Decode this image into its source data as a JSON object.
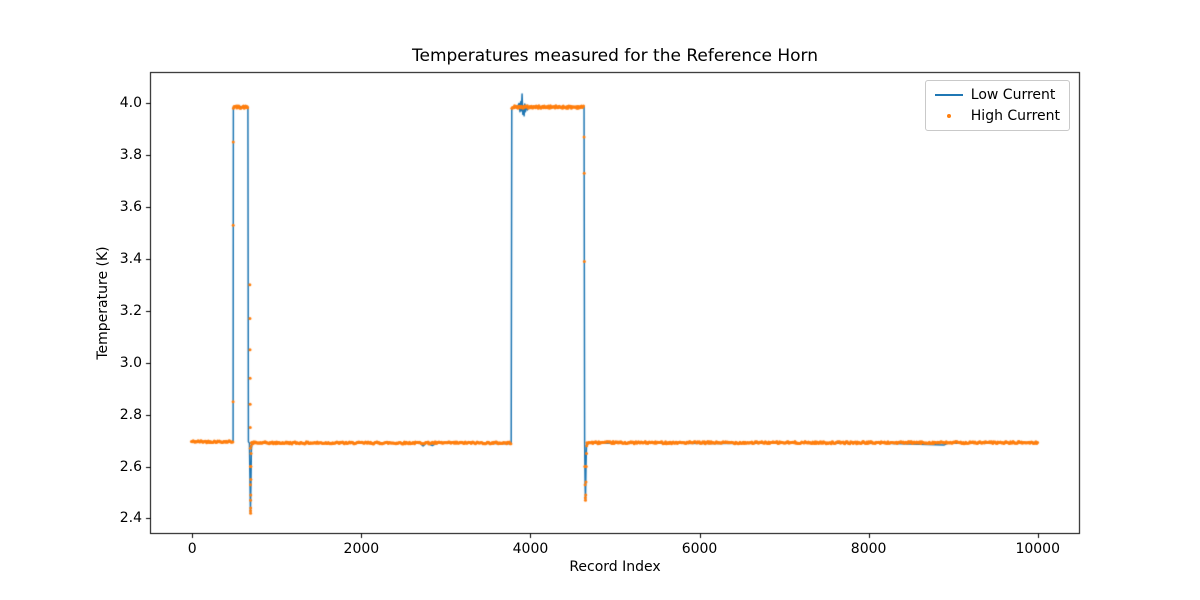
{
  "figure": {
    "background": "#ffffff",
    "axis_color": "#000000"
  },
  "chart_data": {
    "type": "line",
    "title": "Temperatures measured for the Reference Horn",
    "xlabel": "Record Index",
    "ylabel": "Temperature (K)",
    "xlim": [
      -500,
      10500
    ],
    "ylim": [
      2.34,
      4.12
    ],
    "x_ticks": [
      0,
      2000,
      4000,
      6000,
      8000,
      10000
    ],
    "y_ticks": [
      2.4,
      2.6,
      2.8,
      3.0,
      3.2,
      3.4,
      3.6,
      3.8,
      4.0
    ],
    "grid": false,
    "legend_position": "upper right",
    "series": [
      {
        "name": "Low Current",
        "color": "#1f77b4",
        "style": "line",
        "line_width": 1.5,
        "points": [
          [
            0,
            2.695
          ],
          [
            160,
            2.696
          ],
          [
            320,
            2.694
          ],
          [
            470,
            2.695
          ],
          [
            483,
            2.7
          ],
          [
            486,
            3.985
          ],
          [
            520,
            3.983
          ],
          [
            560,
            3.987
          ],
          [
            610,
            3.984
          ],
          [
            658,
            3.985
          ],
          [
            664,
            2.695
          ],
          [
            676,
            2.69
          ],
          [
            682,
            2.56
          ],
          [
            688,
            2.42
          ],
          [
            694,
            2.54
          ],
          [
            699,
            2.66
          ],
          [
            705,
            2.69
          ],
          [
            1100,
            2.691
          ],
          [
            1700,
            2.69
          ],
          [
            2250,
            2.692
          ],
          [
            2690,
            2.69
          ],
          [
            2730,
            2.679
          ],
          [
            2770,
            2.69
          ],
          [
            2840,
            2.681
          ],
          [
            2890,
            2.69
          ],
          [
            3400,
            2.69
          ],
          [
            3762,
            2.688
          ],
          [
            3772,
            2.688
          ],
          [
            3779,
            3.98
          ],
          [
            3810,
            3.982
          ],
          [
            3845,
            3.985
          ],
          [
            3866,
            3.999
          ],
          [
            3876,
            3.967
          ],
          [
            3886,
            4.006
          ],
          [
            3893,
            3.971
          ],
          [
            3901,
            4.035
          ],
          [
            3909,
            3.957
          ],
          [
            3917,
            3.989
          ],
          [
            3925,
            3.951
          ],
          [
            3933,
            3.997
          ],
          [
            3941,
            3.967
          ],
          [
            3951,
            3.991
          ],
          [
            3963,
            3.974
          ],
          [
            3976,
            3.985
          ],
          [
            4060,
            3.984
          ],
          [
            4160,
            3.986
          ],
          [
            4260,
            3.983
          ],
          [
            4360,
            3.985
          ],
          [
            4460,
            3.984
          ],
          [
            4560,
            3.986
          ],
          [
            4628,
            3.985
          ],
          [
            4634,
            3.985
          ],
          [
            4641,
            2.69
          ],
          [
            4647,
            2.52
          ],
          [
            4651,
            2.47
          ],
          [
            4657,
            2.6
          ],
          [
            4663,
            2.68
          ],
          [
            4671,
            2.69
          ],
          [
            5200,
            2.691
          ],
          [
            6200,
            2.689
          ],
          [
            7200,
            2.691
          ],
          [
            8200,
            2.69
          ],
          [
            8890,
            2.683
          ],
          [
            8940,
            2.69
          ],
          [
            9600,
            2.691
          ],
          [
            10000,
            2.693
          ]
        ]
      },
      {
        "name": "High Current",
        "color": "#ff7f0e",
        "style": "scatter",
        "marker_size": 1.5,
        "segments": [
          {
            "x_start": -10,
            "x_end": 481,
            "y": 2.696,
            "jitter": 0.004,
            "step": 10
          },
          {
            "x_start": 487,
            "x_end": 659,
            "y": 3.985,
            "jitter": 0.005,
            "step": 8
          },
          {
            "x_start": 699,
            "x_end": 3775,
            "y": 2.691,
            "jitter": 0.004,
            "step": 10
          },
          {
            "x_start": 3780,
            "x_end": 4631,
            "y": 3.985,
            "jitter": 0.005,
            "step": 8
          },
          {
            "x_start": 4668,
            "x_end": 10003,
            "y": 2.692,
            "jitter": 0.004,
            "step": 10
          }
        ],
        "points": [
          [
            483,
            2.85
          ],
          [
            484,
            3.53
          ],
          [
            485,
            3.85
          ],
          [
            681,
            3.3
          ],
          [
            682,
            3.17
          ],
          [
            683,
            3.05
          ],
          [
            684,
            2.94
          ],
          [
            685,
            2.84
          ],
          [
            686,
            2.75
          ],
          [
            687,
            2.67
          ],
          [
            687,
            2.6
          ],
          [
            688,
            2.53
          ],
          [
            689,
            2.47
          ],
          [
            689,
            2.43
          ],
          [
            690,
            2.42
          ],
          [
            691,
            2.44
          ],
          [
            692,
            2.49
          ],
          [
            693,
            2.55
          ],
          [
            694,
            2.6
          ],
          [
            695,
            2.65
          ],
          [
            696,
            2.68
          ],
          [
            4634,
            3.87
          ],
          [
            4636,
            3.73
          ],
          [
            4638,
            3.39
          ],
          [
            4643,
            2.6
          ],
          [
            4646,
            2.53
          ],
          [
            4649,
            2.48
          ],
          [
            4651,
            2.47
          ],
          [
            4654,
            2.49
          ],
          [
            4657,
            2.54
          ],
          [
            4660,
            2.6
          ],
          [
            4663,
            2.65
          ],
          [
            4666,
            2.68
          ]
        ]
      }
    ]
  }
}
